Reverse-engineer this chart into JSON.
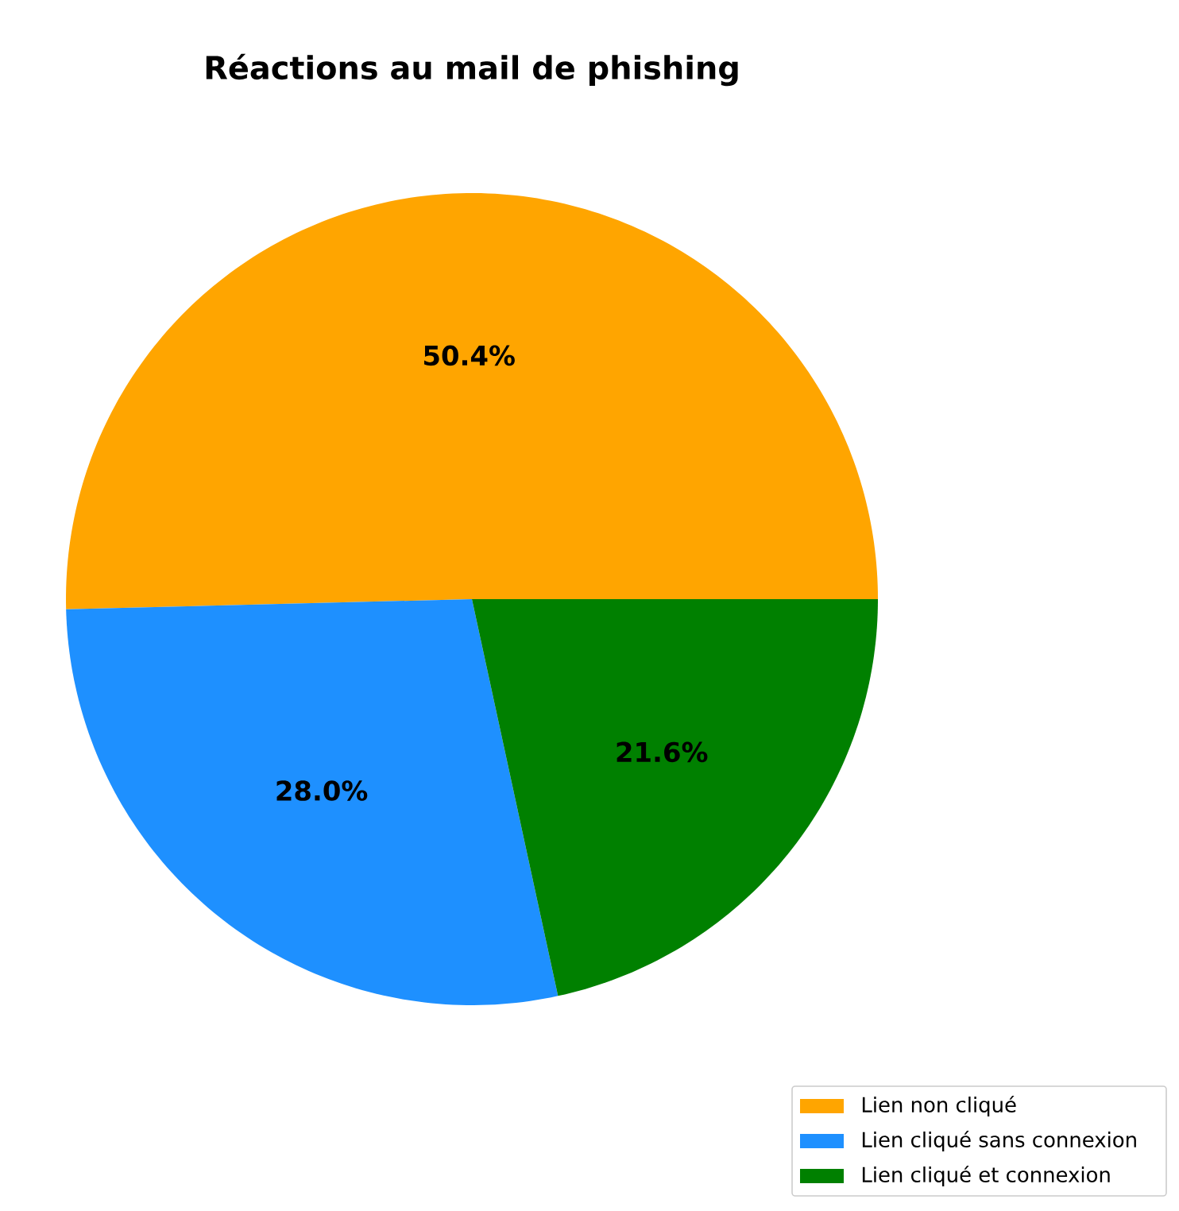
{
  "chart_data": {
    "type": "pie",
    "title": "Réactions au mail de phishing",
    "categories": [
      "Lien non cliqué",
      "Lien cliqué sans connexion",
      "Lien cliqué et connexion"
    ],
    "values": [
      50.4,
      28.0,
      21.6
    ],
    "value_labels": [
      "50.4%",
      "28.0%",
      "21.6%"
    ],
    "colors": [
      "#ffa500",
      "#1e90ff",
      "#008000"
    ],
    "legend": "bottom right"
  }
}
